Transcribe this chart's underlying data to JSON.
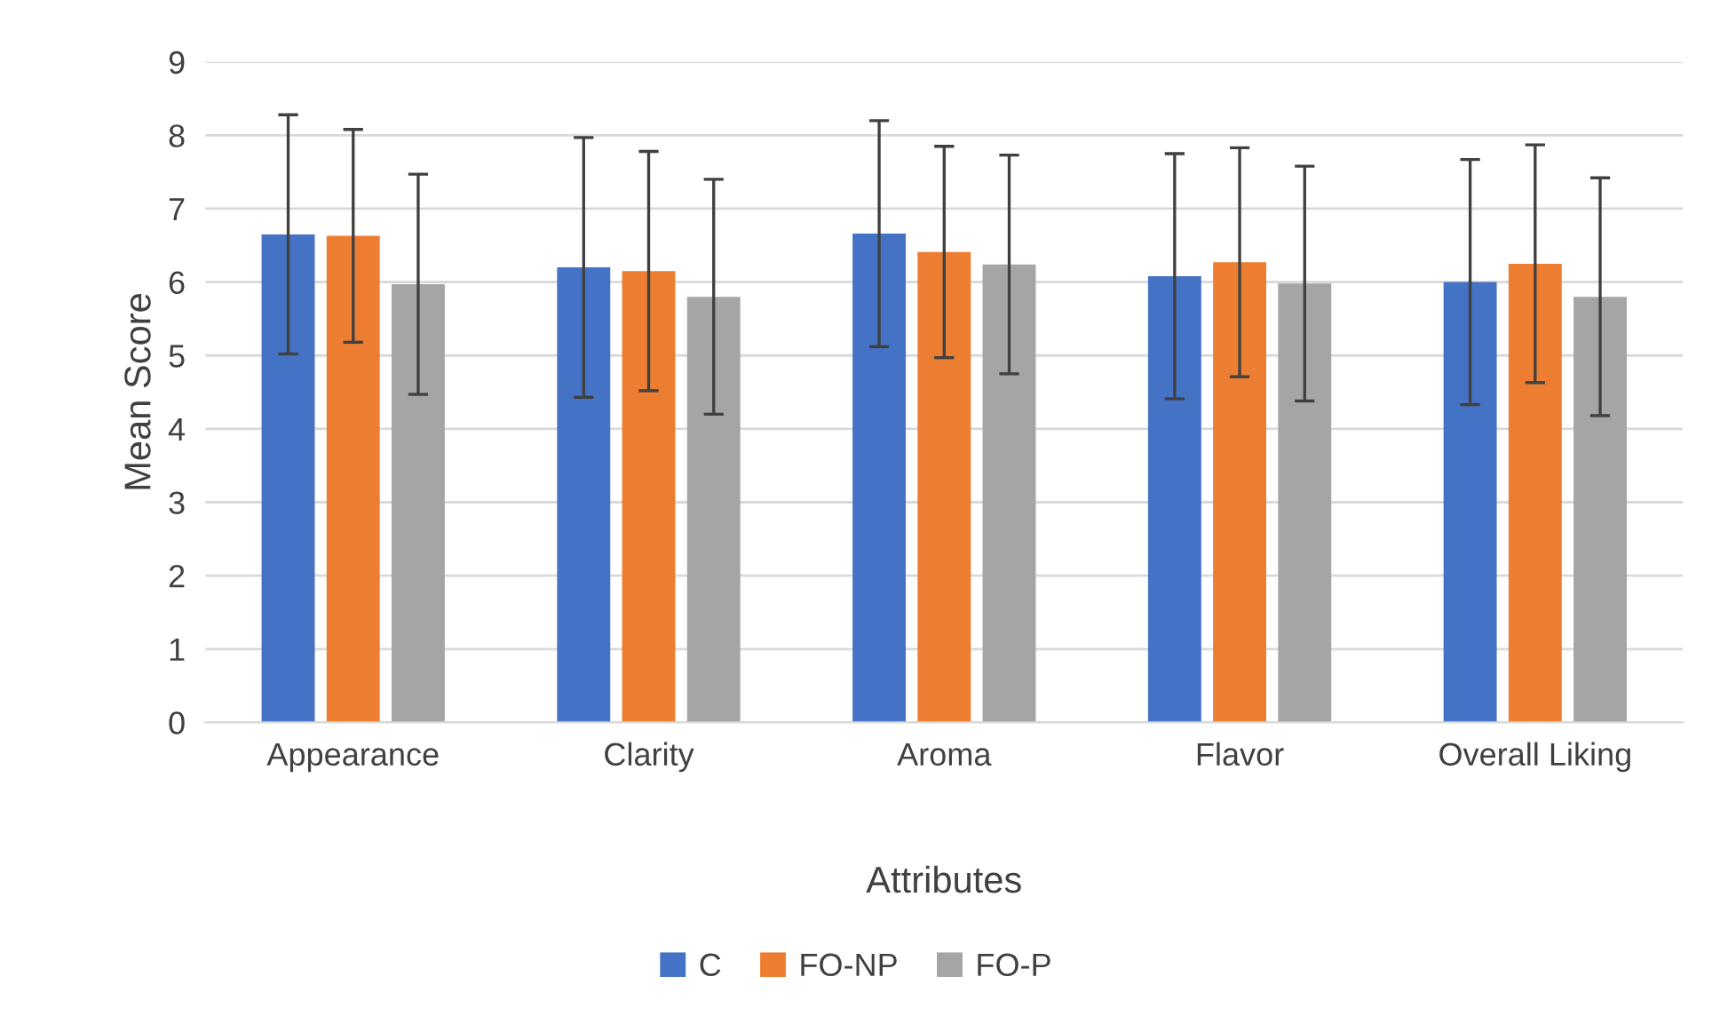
{
  "chart_data": {
    "type": "bar",
    "xlabel": "Attributes",
    "ylabel": "Mean Score",
    "categories": [
      "Appearance",
      "Clarity",
      "Aroma",
      "Flavor",
      "Overall Liking"
    ],
    "series": [
      {
        "name": "C",
        "color": "#4472c4",
        "values": [
          6.65,
          6.2,
          6.66,
          6.08,
          6.0
        ],
        "errors": [
          1.63,
          1.77,
          1.54,
          1.67,
          1.67
        ]
      },
      {
        "name": "FO-NP",
        "color": "#ed7d31",
        "values": [
          6.63,
          6.15,
          6.41,
          6.27,
          6.25
        ],
        "errors": [
          1.45,
          1.63,
          1.44,
          1.56,
          1.62
        ]
      },
      {
        "name": "FO-P",
        "color": "#a5a5a5",
        "values": [
          5.97,
          5.8,
          6.24,
          5.98,
          5.8
        ],
        "errors": [
          1.5,
          1.6,
          1.49,
          1.6,
          1.62
        ]
      }
    ],
    "ylim": [
      0,
      9
    ],
    "yticks": [
      0,
      1,
      2,
      3,
      4,
      5,
      6,
      7,
      8,
      9
    ],
    "grid": "y",
    "legend": "bottom"
  }
}
